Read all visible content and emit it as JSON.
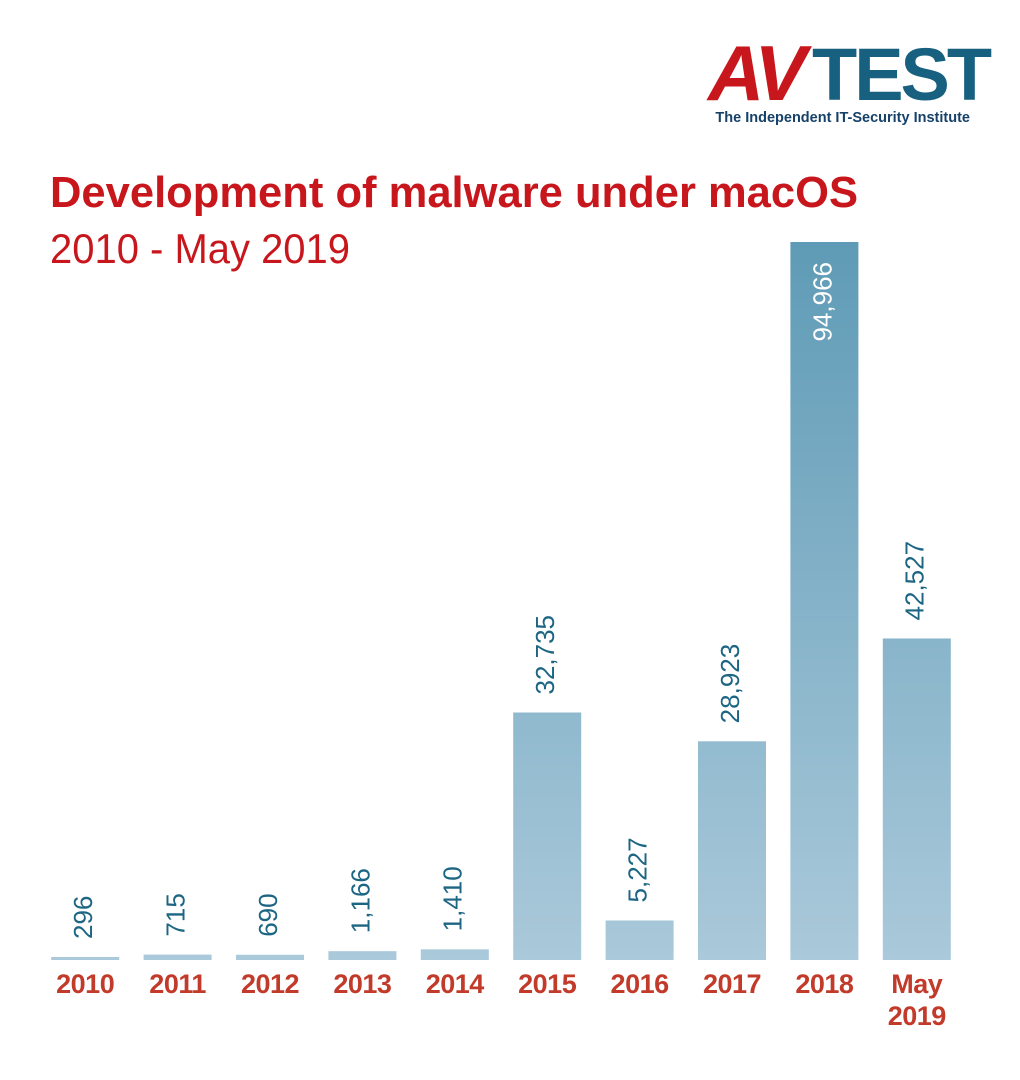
{
  "logo": {
    "brand": "AV",
    "brand_suffix": "TEST",
    "tagline": "The Independent IT-Security Institute"
  },
  "chart_data": {
    "type": "bar",
    "title": "Development of malware under macOS",
    "subtitle": "2010 - May 2019",
    "categories": [
      "2010",
      "2011",
      "2012",
      "2013",
      "2014",
      "2015",
      "2016",
      "2017",
      "2018",
      "May 2019"
    ],
    "values": [
      296,
      715,
      690,
      1166,
      1410,
      32735,
      5227,
      28923,
      94966,
      42527
    ],
    "value_labels": [
      "296",
      "715",
      "690",
      "1,166",
      "1,410",
      "32,735",
      "5,227",
      "28,923",
      "94,966",
      "42,527"
    ]
  }
}
